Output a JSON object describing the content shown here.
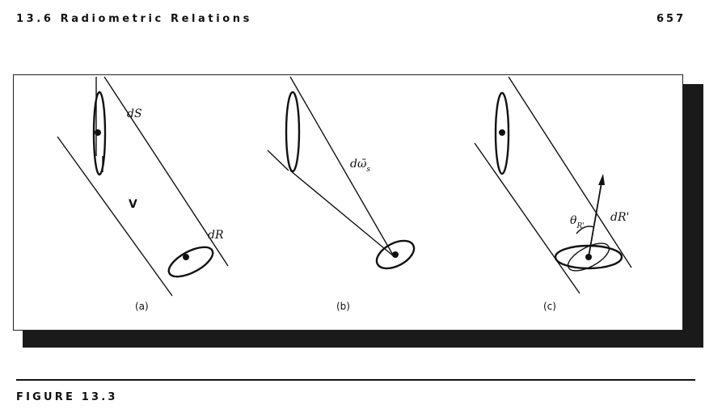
{
  "header": {
    "section_title": "13.6 Radiometric Relations",
    "page_number": "657"
  },
  "figure": {
    "label": "FIGURE 13.3",
    "panels": [
      {
        "caption": "(a)",
        "labels": {
          "source": "dS",
          "volume": "V",
          "receiver": "dR"
        }
      },
      {
        "caption": "(b)",
        "labels": {
          "solid_angle": "dω̄",
          "solid_angle_sub": "s"
        }
      },
      {
        "caption": "(c)",
        "labels": {
          "angle": "θ",
          "angle_sub": "R'",
          "receiver": "dR'"
        }
      }
    ]
  }
}
